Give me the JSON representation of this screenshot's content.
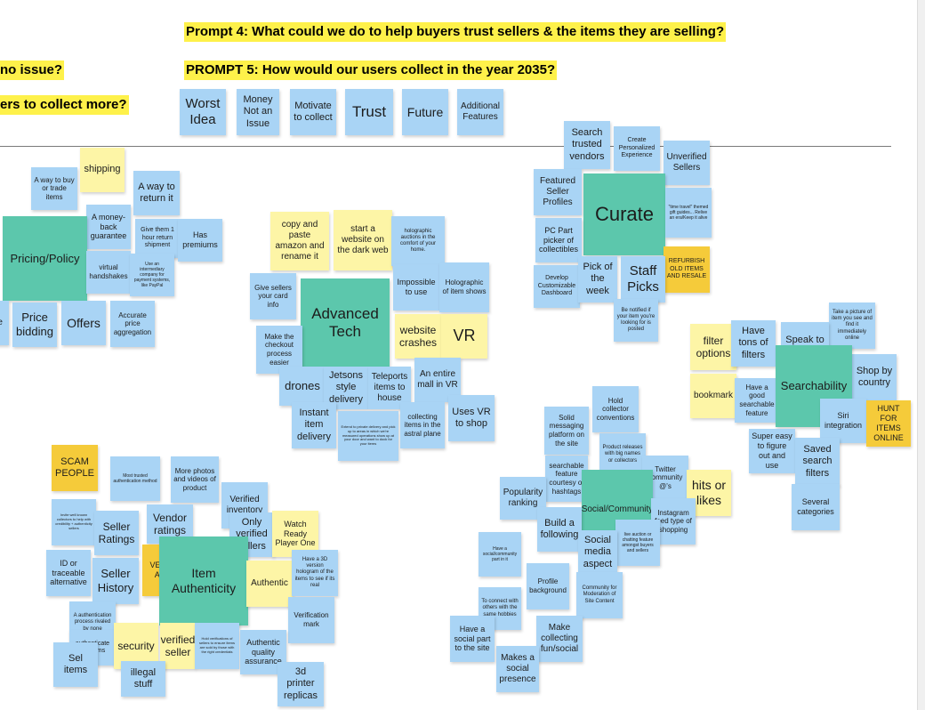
{
  "headers": {
    "p4": "Prompt 4: What could we do to help buyers trust sellers & the items they are selling?",
    "p5": "PROMPT 5: How would our users collect in the year 2035?",
    "left1": "no issue?",
    "left2": "ers to collect more?"
  },
  "categories": {
    "c1": "Worst Idea",
    "c2": "Money Not an Issue",
    "c3": "Motivate to collect",
    "c4": "Trust",
    "c5": "Future",
    "c6": "Additional Features"
  },
  "pricing": {
    "p1": "A way to buy or trade items",
    "p2": "shipping",
    "p3": "A way to return it",
    "p4": "A money-back guarantee",
    "p5": "Give them 1 hour return shipment",
    "p6": "Has premiums",
    "p7": "Pricing/Policy",
    "p8": "virtual handshakes",
    "p9": "Use an intermediary company for payment systems, like PayPal",
    "p10": "Price bidding",
    "p11": "Offers",
    "p12": "Accurate price aggregation",
    "p13": "al ail ce"
  },
  "tech": {
    "t1": "copy and paste amazon and rename it",
    "t2": "start a website on the dark web",
    "t3": "holographic auctions in the comfort of your home.",
    "t4": "Give sellers your card info",
    "t5": "Advanced Tech",
    "t6": "Impossible to use",
    "t7": "Holographic of item shows",
    "t8": "website crashes",
    "t9": "VR",
    "t10": "Make the checkout process easier",
    "t11": "drones",
    "t12": "Jetsons style delivery",
    "t13": "Teleports items to house",
    "t14": "An entire mall in VR",
    "t15": "Instant item delivery",
    "t16": "Extend to private delivery and pick up to areas in which we're measured operations show up at your door and want to dock for your items",
    "t17": "collecting items in the astral plane",
    "t18": "Uses VR to shop"
  },
  "curate": {
    "cu1": "Search trusted vendors",
    "cu2": "Create Personalized Experience",
    "cu3": "Unverified Sellers",
    "cu4": "Featured Seller Profiles",
    "cu5": "Curate",
    "cu6": "\"time travel\" themed gift guides... Relive an era/Keep it alive",
    "cu7": "PC Part picker of collectibles",
    "cu8": "REFURBISH OLD ITEMS AND RESALE",
    "cu9": "Develop Customizable Dashboard",
    "cu10": "Pick of the week",
    "cu11": "Staff Picks",
    "cu12": "Be notified if your item you're looking for is posted"
  },
  "search": {
    "s1": "Take a picture of item you see and find it immediately online",
    "s2": "filter options",
    "s3": "Have tons of filters",
    "s4": "Speak to search",
    "s5": "Shop by country",
    "s6": "bookmark",
    "s7": "Have a good searchable feature",
    "s8": "Searchability",
    "s9": "Siri integration",
    "s10": "HUNT FOR ITEMS ONLINE",
    "s11": "Super easy to figure out and use",
    "s12": "Saved search filters",
    "s13": "Several categories"
  },
  "social": {
    "so1": "Hold collector conventions",
    "so2": "Solid messaging platform on the site",
    "so3": "Product releases with big names or collectors",
    "so4": "searchable feature courtesy of hashtags",
    "so5": "Twitter community @'s",
    "so6": "hits or likes",
    "so7": "Popularity ranking",
    "so8": "Social/Community",
    "so9": "Instagram feed type of shopping",
    "so10": "Build a following",
    "so11": "live auction or chatting feature amongst buyers and sellers",
    "so12": "Social media aspect",
    "so13": "Have a social/community part in it",
    "so14": "Profile background",
    "so15": "Community for Moderation of Site Content",
    "so16": "To connect with others with the same hobbies",
    "so17": "Have a social part to the site",
    "so18": "Make collecting fun/social",
    "so19": "Makes a social presence"
  },
  "auth": {
    "a1": "SCAM PEOPLE",
    "a2": "Most trusted authentication method",
    "a3": "More photos and videos of product",
    "a4": "Verified inventory",
    "a5": "Invite well known collectors to help with credibility + authenticity sellers",
    "a6": "Seller Ratings",
    "a7": "Vendor ratings",
    "a8": "Only verified sellers",
    "a9": "Watch Ready Player One",
    "a10": "ID or traceable alternative",
    "a11": "VE SI AN",
    "a12": "Seller History",
    "a13": "Item Authenticity",
    "a14": "Authentic",
    "a15": "Have a 3D version hologram of the items to see if its real",
    "a16": "A authentication process rivaled by none",
    "a17": "Verification mark",
    "a18": "authenticate the items",
    "a19": "security",
    "a20": "verified seller",
    "a21": "Hold verifications of sellers to ensure items are sold by those with the right credentials",
    "a22": "Authentic quality assurance",
    "a23": "Sel items",
    "a24": "illegal stuff",
    "a25": "3d printer replicas"
  }
}
